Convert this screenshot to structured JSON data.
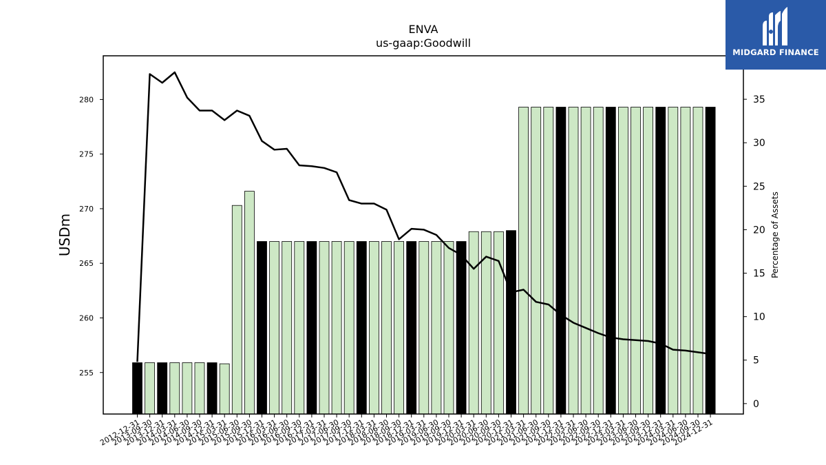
{
  "brand": {
    "name": "MIDGARD FINANCE",
    "logo_icon": "midgard-m-logo-icon",
    "logo_bg": "#2a5aa8"
  },
  "chart_data": {
    "type": "bar",
    "title": "ENVA",
    "subtitle": "us-gaap:Goodwill",
    "ylabel": "USDm",
    "y2label": "Percentage of Assets",
    "ylim": [
      251.2,
      284
    ],
    "y2lim": [
      -1.2,
      40.0
    ],
    "yticks": [
      255,
      260,
      265,
      270,
      275,
      280
    ],
    "y2ticks": [
      0,
      5,
      10,
      15,
      20,
      25,
      30,
      35
    ],
    "categories": [
      "2012-12-31",
      "2013-09-30",
      "2013-12-31",
      "2014-03-31",
      "2014-06-30",
      "2014-09-30",
      "2014-12-31",
      "2015-03-31",
      "2015-06-30",
      "2015-09-30",
      "2015-12-31",
      "2016-03-31",
      "2016-06-30",
      "2016-09-30",
      "2016-12-31",
      "2017-03-31",
      "2017-06-30",
      "2017-09-30",
      "2017-12-31",
      "2018-03-31",
      "2018-06-30",
      "2018-09-30",
      "2018-12-31",
      "2019-03-31",
      "2019-06-30",
      "2019-09-30",
      "2019-12-31",
      "2020-03-31",
      "2020-06-30",
      "2020-09-30",
      "2020-12-31",
      "2021-03-31",
      "2021-06-30",
      "2021-09-30",
      "2021-12-31",
      "2022-03-31",
      "2022-06-30",
      "2022-09-30",
      "2022-12-31",
      "2023-03-31",
      "2023-06-30",
      "2023-09-30",
      "2023-12-31",
      "2024-03-31",
      "2024-06-30",
      "2024-09-30",
      "2024-12-31"
    ],
    "series": [
      {
        "kind": "bar",
        "axis": "left",
        "values": [
          255.9,
          255.9,
          255.9,
          255.9,
          255.9,
          255.9,
          255.9,
          255.8,
          270.3,
          271.6,
          267.0,
          267.0,
          267.0,
          267.0,
          267.0,
          267.0,
          267.0,
          267.0,
          267.0,
          267.0,
          267.0,
          267.0,
          267.0,
          267.0,
          267.0,
          267.0,
          267.0,
          267.9,
          267.9,
          267.9,
          268.0,
          279.3,
          279.3,
          279.3,
          279.3,
          279.3,
          279.3,
          279.3,
          279.3,
          279.3,
          279.3,
          279.3,
          279.3,
          279.3,
          279.3,
          279.3,
          279.3
        ],
        "year_end_color": "#000000",
        "quarter_color": "#cde8c5"
      },
      {
        "kind": "line",
        "axis": "right",
        "values": [
          4.8,
          37.9,
          36.9,
          38.1,
          35.2,
          33.7,
          33.7,
          32.6,
          33.7,
          33.1,
          30.2,
          29.2,
          29.3,
          27.4,
          27.3,
          27.1,
          26.6,
          23.4,
          23.0,
          23.0,
          22.3,
          18.9,
          20.1,
          20.0,
          19.4,
          17.9,
          17.1,
          15.5,
          16.9,
          16.4,
          12.8,
          13.1,
          11.7,
          11.4,
          10.2,
          9.3,
          8.7,
          8.1,
          7.6,
          7.4,
          7.3,
          7.2,
          6.9,
          6.2,
          6.1,
          5.9,
          5.7
        ],
        "color": "#000000"
      }
    ]
  }
}
